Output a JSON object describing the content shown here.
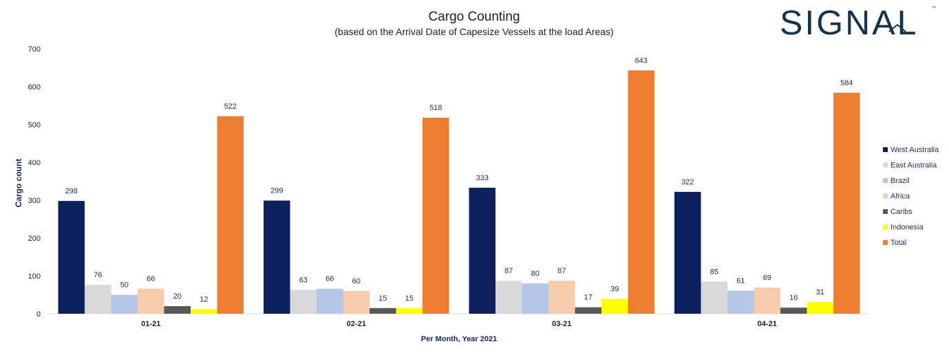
{
  "logo": {
    "text": "SIGNAL",
    "trademark": "™",
    "color": "#17324d"
  },
  "chart_data": {
    "type": "bar",
    "title": "Cargo Counting",
    "subtitle": "(based on the Arrival Date of Capesize Vessels at the load Areas)",
    "xlabel": "Per Month, Year 2021",
    "ylabel": "Cargo count",
    "ylim": [
      0,
      700
    ],
    "yticks": [
      0,
      100,
      200,
      300,
      400,
      500,
      600,
      700
    ],
    "grid": false,
    "legend_position": "right",
    "categories": [
      "01-21",
      "02-21",
      "03-21",
      "04-21"
    ],
    "series": [
      {
        "name": "West Australia",
        "color": "#0d1f5c",
        "values": [
          298,
          299,
          333,
          322
        ]
      },
      {
        "name": "East Australia",
        "color": "#d9d9d9",
        "values": [
          76,
          63,
          87,
          85
        ]
      },
      {
        "name": "Brazil",
        "color": "#b4c7e7",
        "values": [
          50,
          66,
          80,
          61
        ]
      },
      {
        "name": "Africa",
        "color": "#f8cbad",
        "values": [
          66,
          60,
          87,
          69
        ]
      },
      {
        "name": "Caribs",
        "color": "#595959",
        "values": [
          20,
          15,
          17,
          16
        ]
      },
      {
        "name": "Indonesia",
        "color": "#ffff00",
        "values": [
          12,
          15,
          39,
          31
        ]
      },
      {
        "name": "Total",
        "color": "#ed7d31",
        "values": [
          522,
          518,
          643,
          584
        ]
      }
    ]
  }
}
